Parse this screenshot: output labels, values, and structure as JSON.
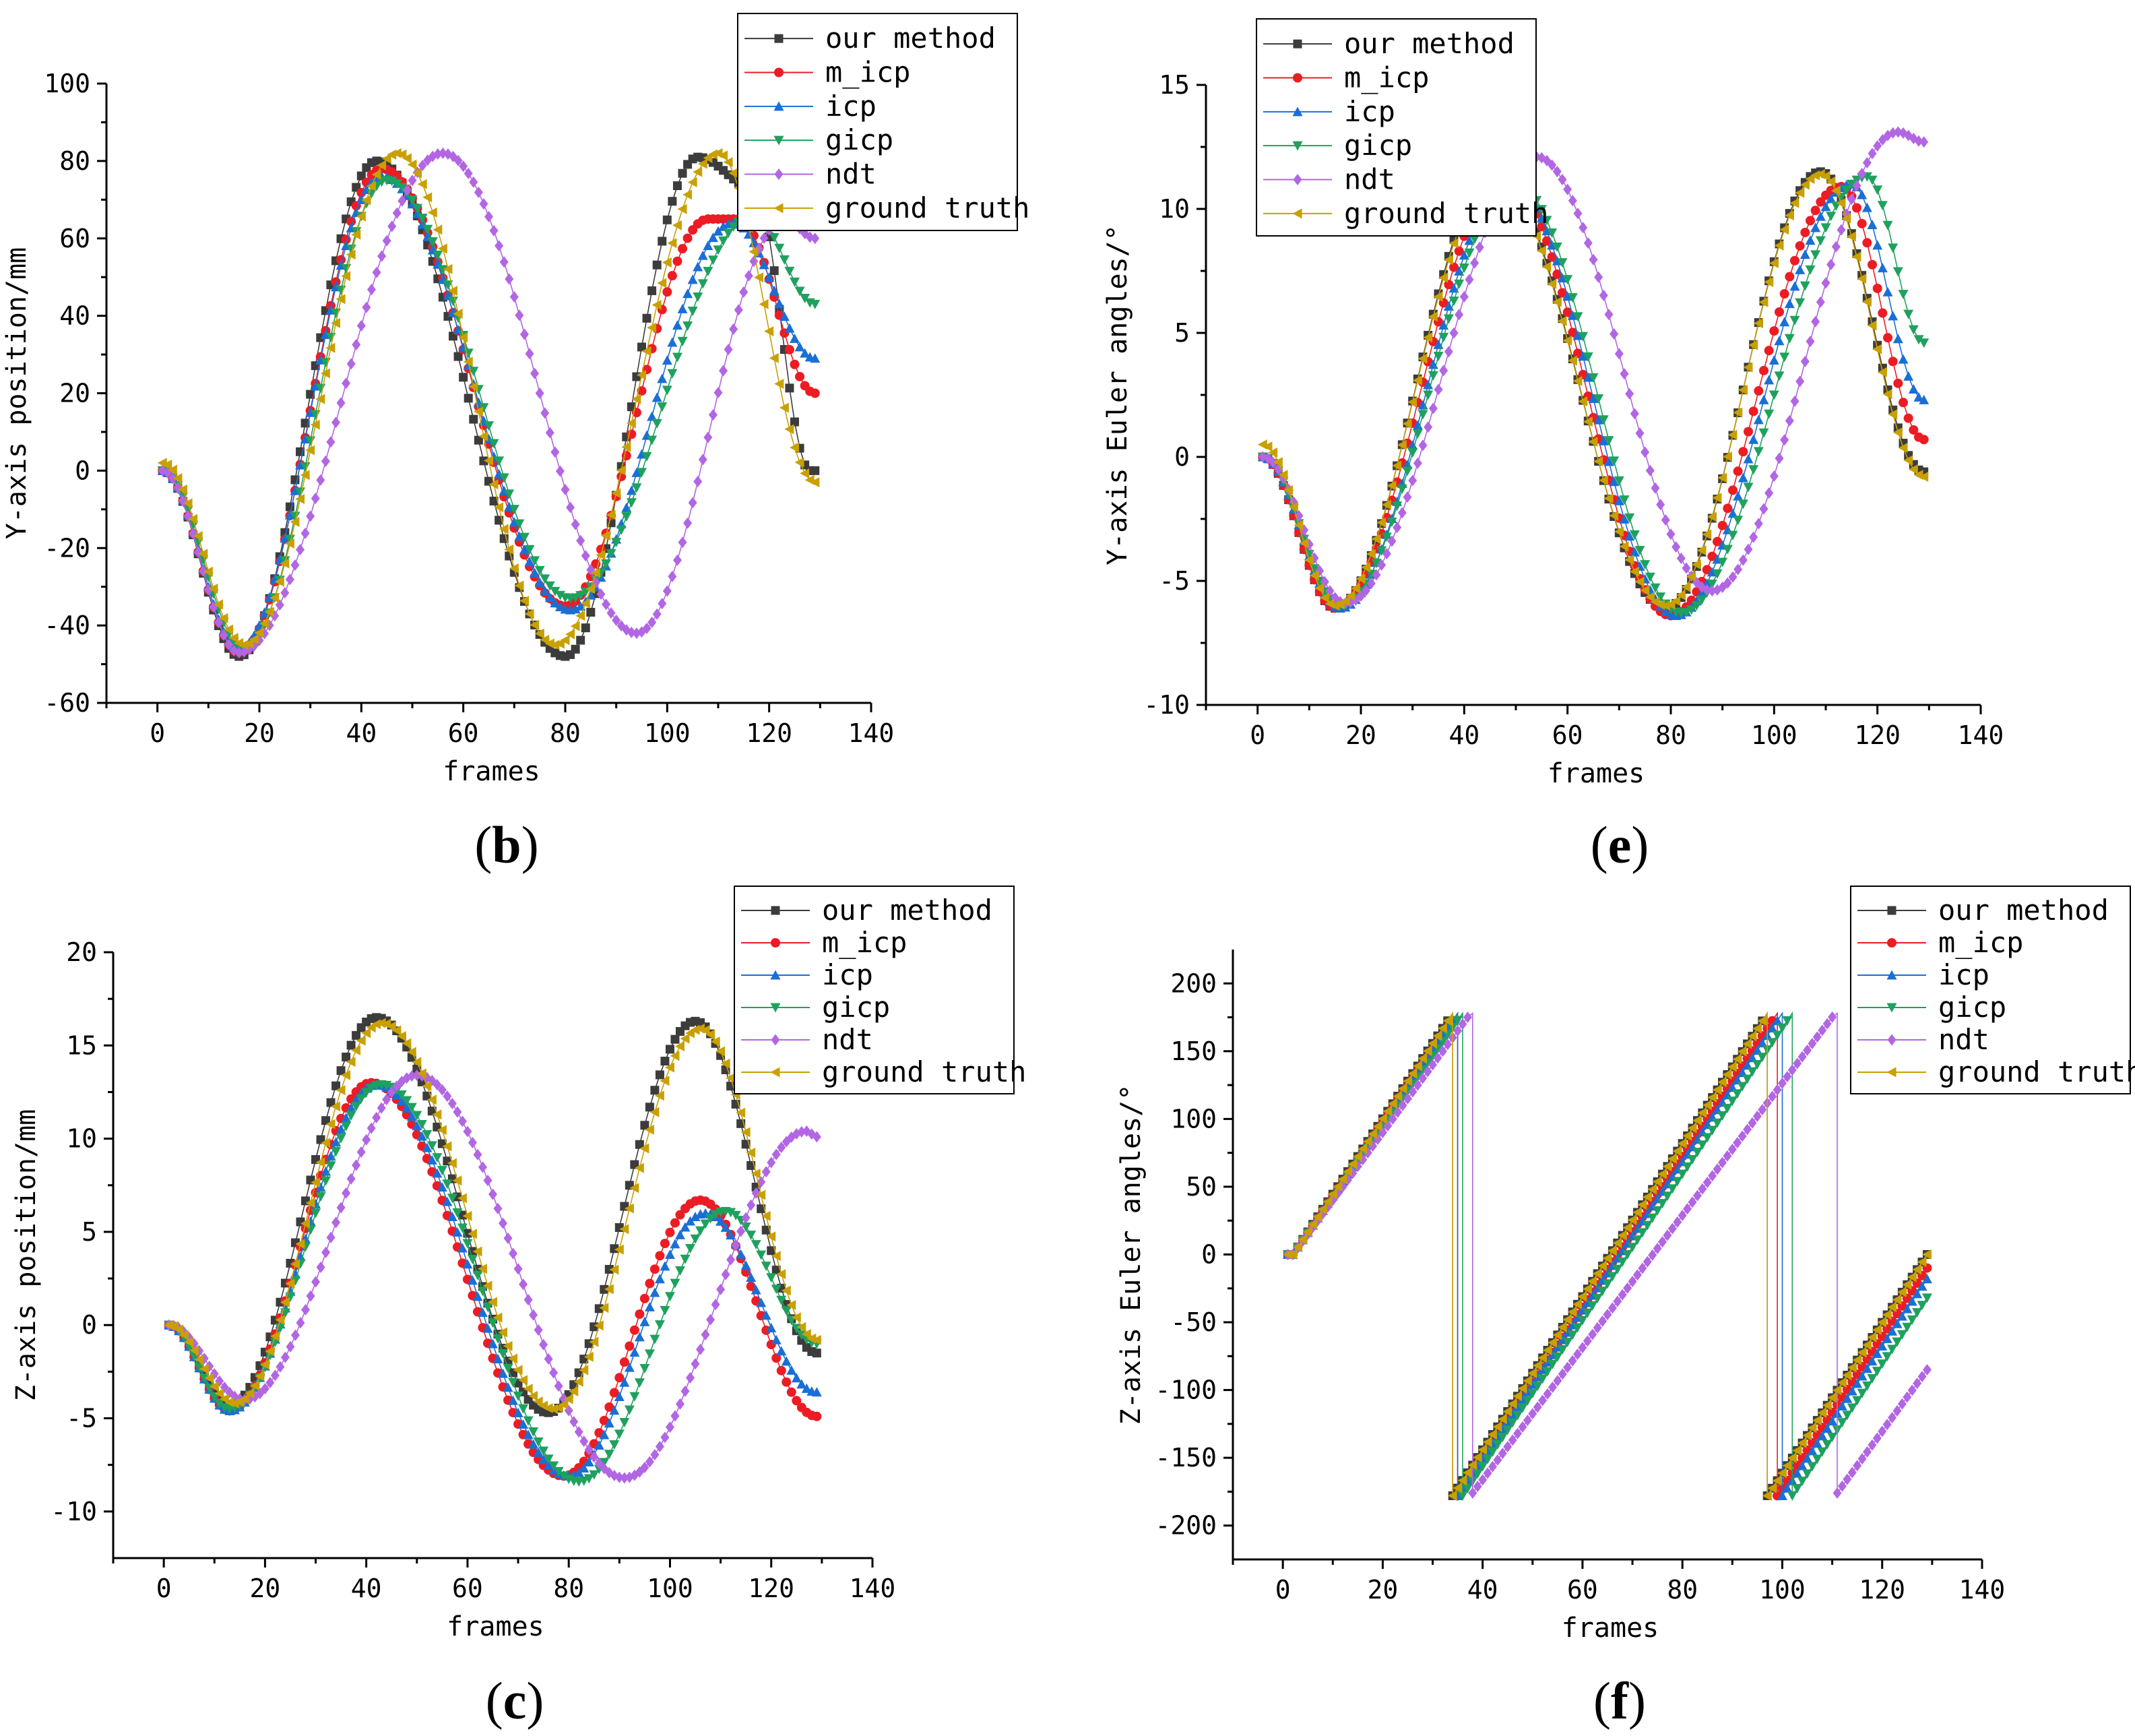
{
  "series_styles": [
    {
      "name": "our method",
      "color": "#3c3c3c",
      "marker": "square"
    },
    {
      "name": "m_icp",
      "color": "#ec1c24",
      "marker": "circle"
    },
    {
      "name": "icp",
      "color": "#1a6fd6",
      "marker": "triangle-up"
    },
    {
      "name": "gicp",
      "color": "#1fa15e",
      "marker": "triangle-down"
    },
    {
      "name": "ndt",
      "color": "#b266e3",
      "marker": "diamond"
    },
    {
      "name": "ground truth",
      "color": "#c9a000",
      "marker": "triangle-left"
    }
  ],
  "chart_data": [
    {
      "type": "line",
      "panel": "b",
      "caption": "b",
      "xlabel": "frames",
      "ylabel": "Y-axis position/mm",
      "xlim": [
        -10,
        140
      ],
      "ylim": [
        -60,
        100
      ],
      "xticks": [
        0,
        20,
        40,
        60,
        80,
        100,
        120,
        140
      ],
      "yticks": [
        -60,
        -40,
        -20,
        0,
        20,
        40,
        60,
        80,
        100
      ],
      "legend_position": "top-right",
      "grid": false,
      "x_range": [
        1,
        129
      ],
      "series": [
        {
          "name": "our method",
          "points": [
            [
              1,
              0
            ],
            [
              16,
              -48
            ],
            [
              43,
              80
            ],
            [
              80,
              -48
            ],
            [
              106,
              81
            ],
            [
              117,
              73
            ],
            [
              128,
              0
            ]
          ]
        },
        {
          "name": "m_icp",
          "points": [
            [
              1,
              0
            ],
            [
              16,
              -47
            ],
            [
              44,
              78
            ],
            [
              80,
              -35
            ],
            [
              108,
              65
            ],
            [
              114,
              65
            ],
            [
              129,
              20
            ]
          ]
        },
        {
          "name": "icp",
          "points": [
            [
              1,
              0
            ],
            [
              16,
              -46
            ],
            [
              44,
              76
            ],
            [
              81,
              -36
            ],
            [
              113,
              64
            ],
            [
              129,
              29
            ]
          ]
        },
        {
          "name": "gicp",
          "points": [
            [
              1,
              0
            ],
            [
              17,
              -46
            ],
            [
              45,
              75
            ],
            [
              81,
              -33
            ],
            [
              117,
              66
            ],
            [
              129,
              43
            ]
          ]
        },
        {
          "name": "ndt",
          "points": [
            [
              1,
              0
            ],
            [
              16,
              -47
            ],
            [
              56,
              82
            ],
            [
              94,
              -42
            ],
            [
              123,
              65
            ],
            [
              129,
              60
            ]
          ]
        },
        {
          "name": "ground truth",
          "points": [
            [
              1,
              2
            ],
            [
              17,
              -45
            ],
            [
              47,
              82
            ],
            [
              78,
              -45
            ],
            [
              110,
              82
            ],
            [
              129,
              -3
            ]
          ]
        }
      ]
    },
    {
      "type": "line",
      "panel": "e",
      "caption": "e",
      "xlabel": "frames",
      "ylabel": "Y-axis Euler angles/°",
      "xlim": [
        -10,
        140
      ],
      "ylim": [
        -10,
        15
      ],
      "xticks": [
        0,
        20,
        40,
        60,
        80,
        100,
        120,
        140
      ],
      "yticks": [
        -10,
        -5,
        0,
        5,
        10,
        15
      ],
      "legend_position": "top-left",
      "grid": false,
      "x_range": [
        1,
        129
      ],
      "series": [
        {
          "name": "our method",
          "points": [
            [
              1,
              0
            ],
            [
              15,
              -6.1
            ],
            [
              46,
              11.5
            ],
            [
              79,
              -6.1
            ],
            [
              109,
              11.5
            ],
            [
              129,
              -0.6
            ]
          ]
        },
        {
          "name": "m_icp",
          "points": [
            [
              1,
              0
            ],
            [
              15,
              -6.1
            ],
            [
              48,
              11.3
            ],
            [
              80,
              -6.4
            ],
            [
              113,
              10.9
            ],
            [
              129,
              0.7
            ]
          ]
        },
        {
          "name": "icp",
          "points": [
            [
              1,
              0
            ],
            [
              16,
              -6.1
            ],
            [
              49,
              11.1
            ],
            [
              81,
              -6.4
            ],
            [
              115,
              11.0
            ],
            [
              129,
              2.3
            ]
          ]
        },
        {
          "name": "gicp",
          "points": [
            [
              1,
              0
            ],
            [
              16,
              -6.0
            ],
            [
              50,
              11.0
            ],
            [
              82,
              -6.3
            ],
            [
              118,
              11.3
            ],
            [
              129,
              4.6
            ]
          ]
        },
        {
          "name": "ndt",
          "points": [
            [
              1,
              0
            ],
            [
              17,
              -5.9
            ],
            [
              54,
              12.1
            ],
            [
              88,
              -5.4
            ],
            [
              124,
              13.1
            ],
            [
              129,
              12.7
            ]
          ]
        },
        {
          "name": "ground truth",
          "points": [
            [
              1,
              0.5
            ],
            [
              15,
              -6.0
            ],
            [
              46,
              11.3
            ],
            [
              79,
              -6.0
            ],
            [
              109,
              11.4
            ],
            [
              129,
              -0.8
            ]
          ]
        }
      ]
    },
    {
      "type": "line",
      "panel": "c",
      "caption": "c",
      "xlabel": "frames",
      "ylabel": "Z-axis position/mm",
      "xlim": [
        -10,
        140
      ],
      "ylim": [
        -12.5,
        20
      ],
      "xticks": [
        0,
        20,
        40,
        60,
        80,
        100,
        120,
        140
      ],
      "yticks": [
        -10,
        -5,
        0,
        5,
        10,
        15,
        20
      ],
      "legend_position": "top-right",
      "grid": false,
      "x_range": [
        1,
        129
      ],
      "series": [
        {
          "name": "our method",
          "points": [
            [
              1,
              0
            ],
            [
              13,
              -4.3
            ],
            [
              42,
              16.5
            ],
            [
              76,
              -4.7
            ],
            [
              105,
              16.3
            ],
            [
              129,
              -1.5
            ]
          ]
        },
        {
          "name": "m_icp",
          "points": [
            [
              1,
              0
            ],
            [
              13,
              -4.6
            ],
            [
              41,
              13.0
            ],
            [
              79,
              -8.1
            ],
            [
              106,
              6.7
            ],
            [
              129,
              -4.9
            ]
          ]
        },
        {
          "name": "icp",
          "points": [
            [
              1,
              0
            ],
            [
              13,
              -4.6
            ],
            [
              42,
              12.9
            ],
            [
              80,
              -8.1
            ],
            [
              107,
              6.0
            ],
            [
              129,
              -3.6
            ]
          ]
        },
        {
          "name": "gicp",
          "points": [
            [
              1,
              0
            ],
            [
              13,
              -4.5
            ],
            [
              43,
              12.9
            ],
            [
              82,
              -8.4
            ],
            [
              111,
              6.1
            ],
            [
              129,
              -1.0
            ]
          ]
        },
        {
          "name": "ndt",
          "points": [
            [
              1,
              0
            ],
            [
              16,
              -4.0
            ],
            [
              50,
              13.4
            ],
            [
              91,
              -8.2
            ],
            [
              127,
              10.4
            ],
            [
              129,
              10.1
            ]
          ]
        },
        {
          "name": "ground truth",
          "points": [
            [
              1,
              0
            ],
            [
              14,
              -4.2
            ],
            [
              43,
              16.2
            ],
            [
              77,
              -4.5
            ],
            [
              106,
              15.9
            ],
            [
              129,
              -0.8
            ]
          ]
        }
      ]
    },
    {
      "type": "line",
      "panel": "f",
      "caption": "f",
      "xlabel": "frames",
      "ylabel": "Z-axis Euler angles/°",
      "xlim": [
        -10,
        140
      ],
      "ylim": [
        -225,
        225
      ],
      "xticks": [
        0,
        20,
        40,
        60,
        80,
        100,
        120,
        140
      ],
      "yticks": [
        -200,
        -150,
        -100,
        -50,
        0,
        50,
        100,
        150,
        200
      ],
      "legend_position": "top-right",
      "grid": false,
      "wrap": [
        -180,
        180
      ],
      "x_range": [
        1,
        129
      ],
      "series": [
        {
          "name": "our method",
          "points": [
            [
              1,
              0
            ],
            [
              2,
              0
            ],
            [
              34,
              178
            ],
            [
              34,
              -178
            ],
            [
              97,
              178
            ],
            [
              97,
              -178
            ],
            [
              129,
              0
            ]
          ]
        },
        {
          "name": "m_icp",
          "points": [
            [
              1,
              0
            ],
            [
              2,
              0
            ],
            [
              35,
              178
            ],
            [
              35,
              -178
            ],
            [
              99,
              178
            ],
            [
              99,
              -178
            ],
            [
              129,
              -10
            ]
          ]
        },
        {
          "name": "icp",
          "points": [
            [
              1,
              0
            ],
            [
              2,
              0
            ],
            [
              35,
              178
            ],
            [
              35,
              -178
            ],
            [
              100,
              178
            ],
            [
              100,
              -178
            ],
            [
              129,
              -18
            ]
          ]
        },
        {
          "name": "gicp",
          "points": [
            [
              1,
              0
            ],
            [
              2,
              0
            ],
            [
              36,
              178
            ],
            [
              36,
              -178
            ],
            [
              102,
              178
            ],
            [
              102,
              -178
            ],
            [
              129,
              -32
            ]
          ]
        },
        {
          "name": "ndt",
          "points": [
            [
              1,
              0
            ],
            [
              2,
              0
            ],
            [
              38,
              180
            ],
            [
              38,
              -176
            ],
            [
              111,
              180
            ],
            [
              111,
              -176
            ],
            [
              129,
              -85
            ]
          ]
        },
        {
          "name": "ground truth",
          "points": [
            [
              1,
              0
            ],
            [
              2,
              0
            ],
            [
              34,
              178
            ],
            [
              34,
              -178
            ],
            [
              97,
              178
            ],
            [
              97,
              -178
            ],
            [
              129,
              0
            ]
          ]
        }
      ]
    }
  ]
}
